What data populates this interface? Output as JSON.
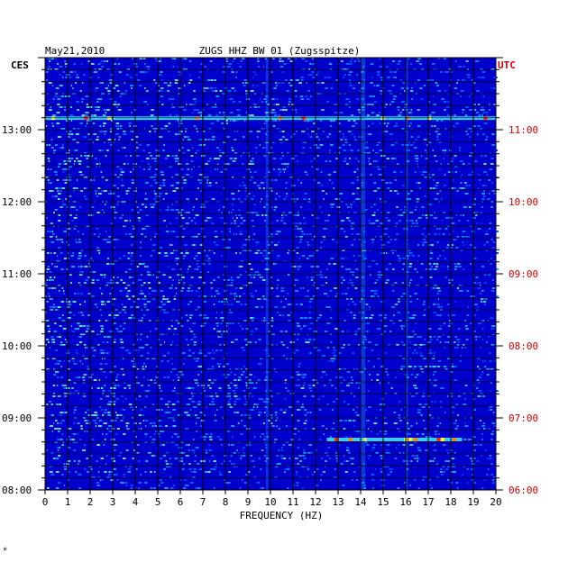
{
  "chart_data": {
    "type": "heatmap",
    "date": "May21,2010",
    "title": "ZUGS HHZ BW 01 (Zugsspitze)",
    "left_zone": "CES",
    "right_zone": "UTC",
    "xlabel": "FREQUENCY (HZ)",
    "x_ticks": [
      "0",
      "1",
      "2",
      "3",
      "4",
      "5",
      "6",
      "7",
      "8",
      "9",
      "10",
      "11",
      "12",
      "13",
      "14",
      "15",
      "16",
      "17",
      "18",
      "19",
      "20"
    ],
    "xlim": [
      0,
      20
    ],
    "left_time_labels": [
      "13:00",
      "12:00",
      "11:00",
      "10:00",
      "09:00",
      "08:00"
    ],
    "right_time_labels": [
      "11:00",
      "10:00",
      "09:00",
      "08:00",
      "07:00",
      "06:00"
    ],
    "left_time_hours": [
      13,
      12,
      11,
      10,
      9,
      8
    ],
    "time_range_hours": [
      8,
      14
    ],
    "footnote": "*",
    "colors": {
      "background": "#0000cc",
      "right_labels": "#cc0000",
      "grid": "#000000",
      "text": "#000000"
    },
    "features": [
      {
        "time": 13.16,
        "freq_from": 0,
        "freq_to": 20,
        "kind": "horizontal band"
      },
      {
        "time": 8.7,
        "freq_from": 12.5,
        "freq_to": 18.5,
        "kind": "horizontal band"
      },
      {
        "time": 13.0,
        "freq_from": 14.0,
        "freq_to": 14.2,
        "kind": "vertical streak"
      },
      {
        "time": 12.0,
        "freq_from": 16.0,
        "freq_to": 16.1,
        "kind": "vertical streak"
      },
      {
        "time": 9.5,
        "freq_from": 9.8,
        "freq_to": 9.9,
        "kind": "vertical streak"
      }
    ]
  }
}
